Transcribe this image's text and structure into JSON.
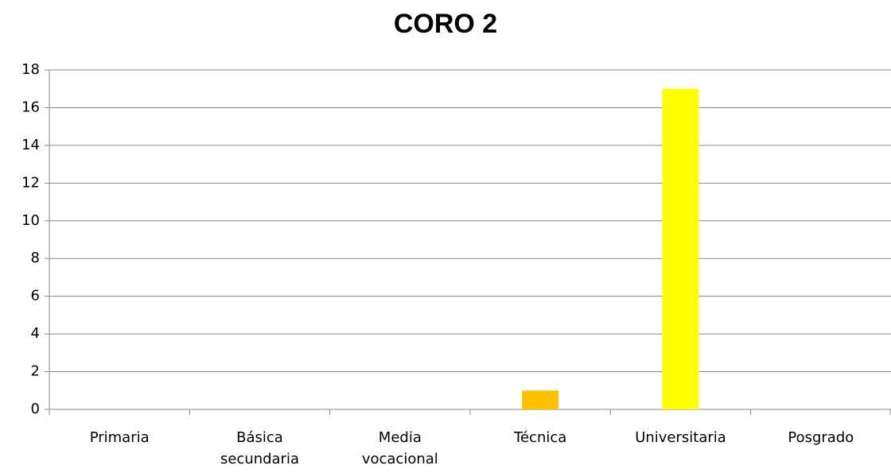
{
  "chart_data": {
    "type": "bar",
    "title": "CORO 2",
    "categories": [
      "Primaria",
      "Básica secundaria",
      "Media vocacional",
      "Técnica",
      "Universitaria",
      "Posgrado"
    ],
    "values": [
      0,
      0,
      0,
      1,
      17,
      0
    ],
    "colors": [
      "#ffc000",
      "#ffc000",
      "#ffc000",
      "#ffc000",
      "#ffff00",
      "#ffc000"
    ],
    "ylim": [
      0,
      18
    ],
    "yticks": [
      0,
      2,
      4,
      6,
      8,
      10,
      12,
      14,
      16,
      18
    ],
    "grid": true
  }
}
